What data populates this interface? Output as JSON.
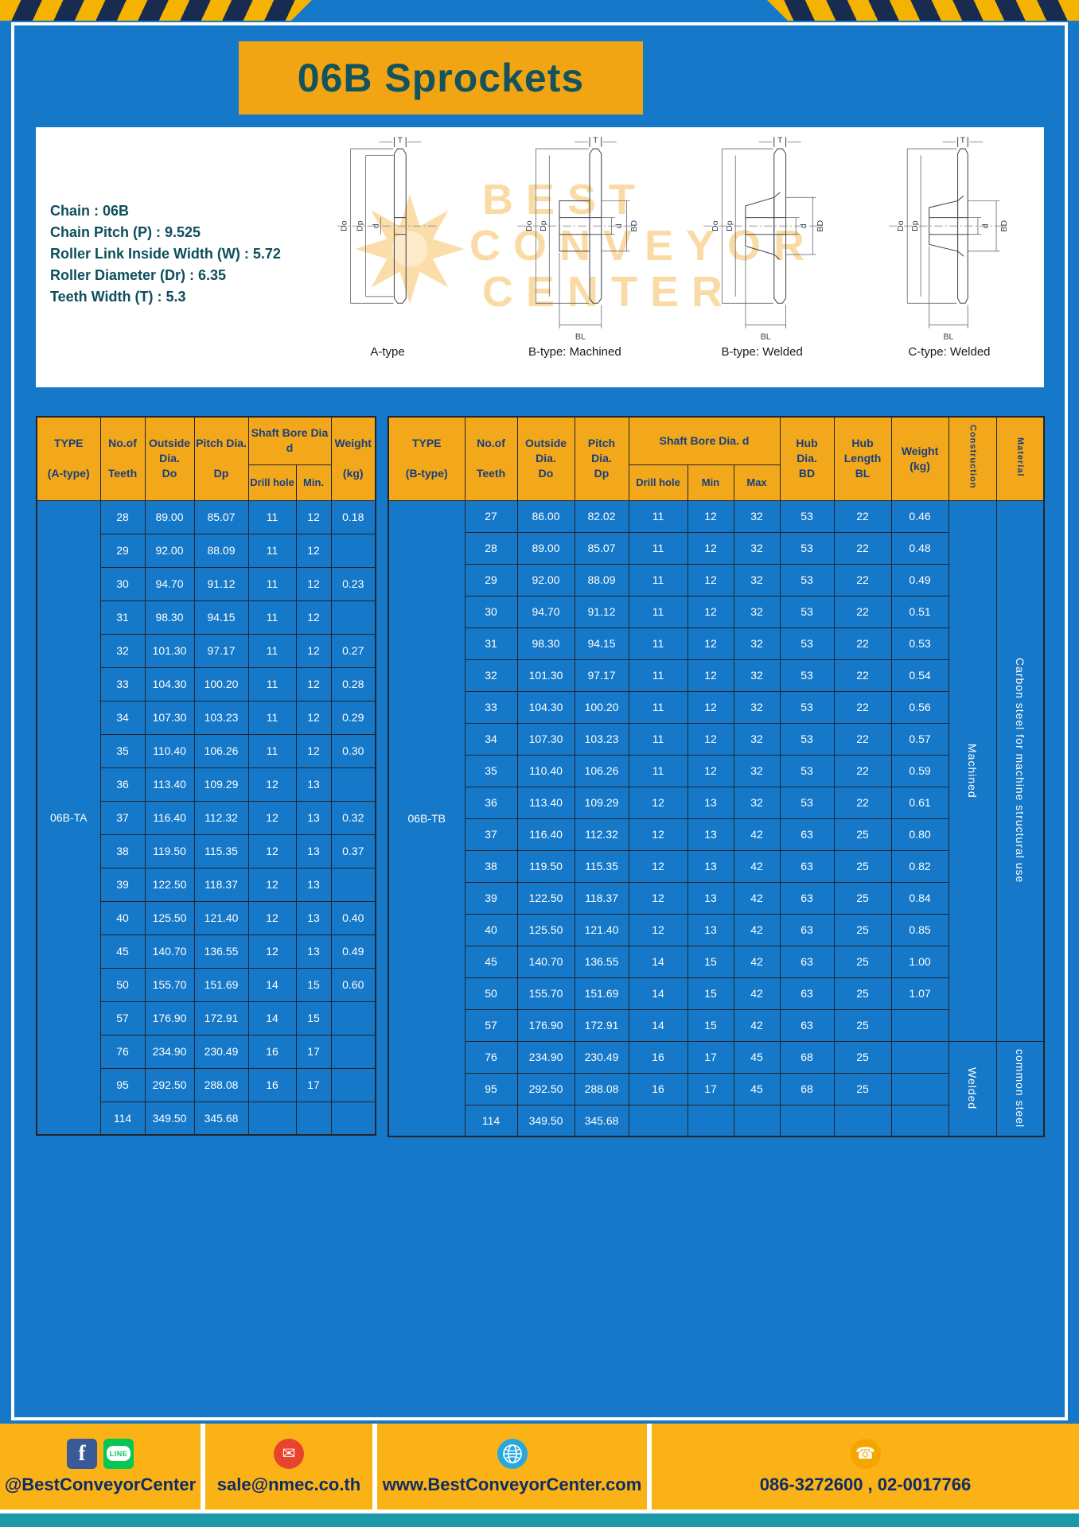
{
  "page": {
    "title": "06B Sprockets"
  },
  "colors": {
    "page_blue": "#1578c8",
    "accent_yellow": "#F2A513",
    "table_header_yellow": "#F3A81B",
    "footer_yellow": "#FBB216",
    "title_teal": "#14535E",
    "header_navy": "#173F7E",
    "footer_navy": "#0D2D66",
    "teal_strip": "#1A9AA8"
  },
  "specs": {
    "lines": [
      "Chain : 06B",
      "Chain Pitch (P) : 9.525",
      "Roller Link Inside Width (W) : 5.72",
      "Roller Diameter (Dr) : 6.35",
      "Teeth Width (T) : 5.3"
    ]
  },
  "watermark": {
    "line1": "BEST",
    "line2": "CONVEYOR",
    "line3": "CENTER"
  },
  "drawings": {
    "labels": [
      "A-type",
      "B-type: Machined",
      "B-type: Welded",
      "C-type: Welded"
    ],
    "dims": {
      "T": "T",
      "Do": "Do",
      "Dp": "Dp",
      "d": "d",
      "BD": "BD",
      "BL": "BL"
    }
  },
  "table_a": {
    "type_label": "06B-TA",
    "header": {
      "type": "TYPE\n\n(A-type)",
      "teeth": "No.of\n\nTeeth",
      "outside": "Outside\nDia.\nDo",
      "pitch": "Pitch Dia.\n\nDp",
      "shaft_bore": "Shaft Bore Dia d",
      "drill": "Drill hole",
      "min": "Min.",
      "weight": "Weight\n\n(kg)"
    },
    "rows": [
      [
        "28",
        "89.00",
        "85.07",
        "11",
        "12",
        "0.18"
      ],
      [
        "29",
        "92.00",
        "88.09",
        "11",
        "12",
        ""
      ],
      [
        "30",
        "94.70",
        "91.12",
        "11",
        "12",
        "0.23"
      ],
      [
        "31",
        "98.30",
        "94.15",
        "11",
        "12",
        ""
      ],
      [
        "32",
        "101.30",
        "97.17",
        "11",
        "12",
        "0.27"
      ],
      [
        "33",
        "104.30",
        "100.20",
        "11",
        "12",
        "0.28"
      ],
      [
        "34",
        "107.30",
        "103.23",
        "11",
        "12",
        "0.29"
      ],
      [
        "35",
        "110.40",
        "106.26",
        "11",
        "12",
        "0.30"
      ],
      [
        "36",
        "113.40",
        "109.29",
        "12",
        "13",
        ""
      ],
      [
        "37",
        "116.40",
        "112.32",
        "12",
        "13",
        "0.32"
      ],
      [
        "38",
        "119.50",
        "115.35",
        "12",
        "13",
        "0.37"
      ],
      [
        "39",
        "122.50",
        "118.37",
        "12",
        "13",
        ""
      ],
      [
        "40",
        "125.50",
        "121.40",
        "12",
        "13",
        "0.40"
      ],
      [
        "45",
        "140.70",
        "136.55",
        "12",
        "13",
        "0.49"
      ],
      [
        "50",
        "155.70",
        "151.69",
        "14",
        "15",
        "0.60"
      ],
      [
        "57",
        "176.90",
        "172.91",
        "14",
        "15",
        ""
      ],
      [
        "76",
        "234.90",
        "230.49",
        "16",
        "17",
        ""
      ],
      [
        "95",
        "292.50",
        "288.08",
        "16",
        "17",
        ""
      ],
      [
        "114",
        "349.50",
        "345.68",
        "",
        "",
        ""
      ]
    ]
  },
  "table_b": {
    "type_label": "06B-TB",
    "header": {
      "type": "TYPE\n\n(B-type)",
      "teeth": "No.of\n\nTeeth",
      "outside": "Outside\nDia.\nDo",
      "pitch": "Pitch\nDia.\nDp",
      "shaft_bore": "Shaft Bore Dia. d",
      "drill": "Drill hole",
      "min": "Min",
      "max": "Max",
      "hub_dia": "Hub\nDia.\nBD",
      "hub_len": "Hub\nLength\nBL",
      "weight": "Weight\n(kg)",
      "construction": "Construction",
      "material": "Material"
    },
    "rows": [
      [
        "27",
        "86.00",
        "82.02",
        "11",
        "12",
        "32",
        "53",
        "22",
        "0.46"
      ],
      [
        "28",
        "89.00",
        "85.07",
        "11",
        "12",
        "32",
        "53",
        "22",
        "0.48"
      ],
      [
        "29",
        "92.00",
        "88.09",
        "11",
        "12",
        "32",
        "53",
        "22",
        "0.49"
      ],
      [
        "30",
        "94.70",
        "91.12",
        "11",
        "12",
        "32",
        "53",
        "22",
        "0.51"
      ],
      [
        "31",
        "98.30",
        "94.15",
        "11",
        "12",
        "32",
        "53",
        "22",
        "0.53"
      ],
      [
        "32",
        "101.30",
        "97.17",
        "11",
        "12",
        "32",
        "53",
        "22",
        "0.54"
      ],
      [
        "33",
        "104.30",
        "100.20",
        "11",
        "12",
        "32",
        "53",
        "22",
        "0.56"
      ],
      [
        "34",
        "107.30",
        "103.23",
        "11",
        "12",
        "32",
        "53",
        "22",
        "0.57"
      ],
      [
        "35",
        "110.40",
        "106.26",
        "11",
        "12",
        "32",
        "53",
        "22",
        "0.59"
      ],
      [
        "36",
        "113.40",
        "109.29",
        "12",
        "13",
        "32",
        "53",
        "22",
        "0.61"
      ],
      [
        "37",
        "116.40",
        "112.32",
        "12",
        "13",
        "42",
        "63",
        "25",
        "0.80"
      ],
      [
        "38",
        "119.50",
        "115.35",
        "12",
        "13",
        "42",
        "63",
        "25",
        "0.82"
      ],
      [
        "39",
        "122.50",
        "118.37",
        "12",
        "13",
        "42",
        "63",
        "25",
        "0.84"
      ],
      [
        "40",
        "125.50",
        "121.40",
        "12",
        "13",
        "42",
        "63",
        "25",
        "0.85"
      ],
      [
        "45",
        "140.70",
        "136.55",
        "14",
        "15",
        "42",
        "63",
        "25",
        "1.00"
      ],
      [
        "50",
        "155.70",
        "151.69",
        "14",
        "15",
        "42",
        "63",
        "25",
        "1.07"
      ],
      [
        "57",
        "176.90",
        "172.91",
        "14",
        "15",
        "42",
        "63",
        "25",
        ""
      ],
      [
        "76",
        "234.90",
        "230.49",
        "16",
        "17",
        "45",
        "68",
        "25",
        ""
      ],
      [
        "95",
        "292.50",
        "288.08",
        "16",
        "17",
        "45",
        "68",
        "25",
        ""
      ],
      [
        "114",
        "349.50",
        "345.68",
        "",
        "",
        "",
        "",
        "",
        ""
      ]
    ],
    "construction": [
      {
        "label": "Machined",
        "span": 17
      },
      {
        "label": "Welded",
        "span": 3
      }
    ],
    "material": [
      {
        "label": "Carbon steel for machine structural use",
        "span": 17
      },
      {
        "label": "common steel",
        "span": 3
      }
    ]
  },
  "footer": {
    "handle": "@BestConveyorCenter",
    "email": "sale@nmec.co.th",
    "website": "www.BestConveyorCenter.com",
    "phone": "086-3272600 , 02-0017766",
    "facebook_letter": "f",
    "line_label": "LINE",
    "email_glyph": "✉",
    "phone_glyph": "☎"
  }
}
